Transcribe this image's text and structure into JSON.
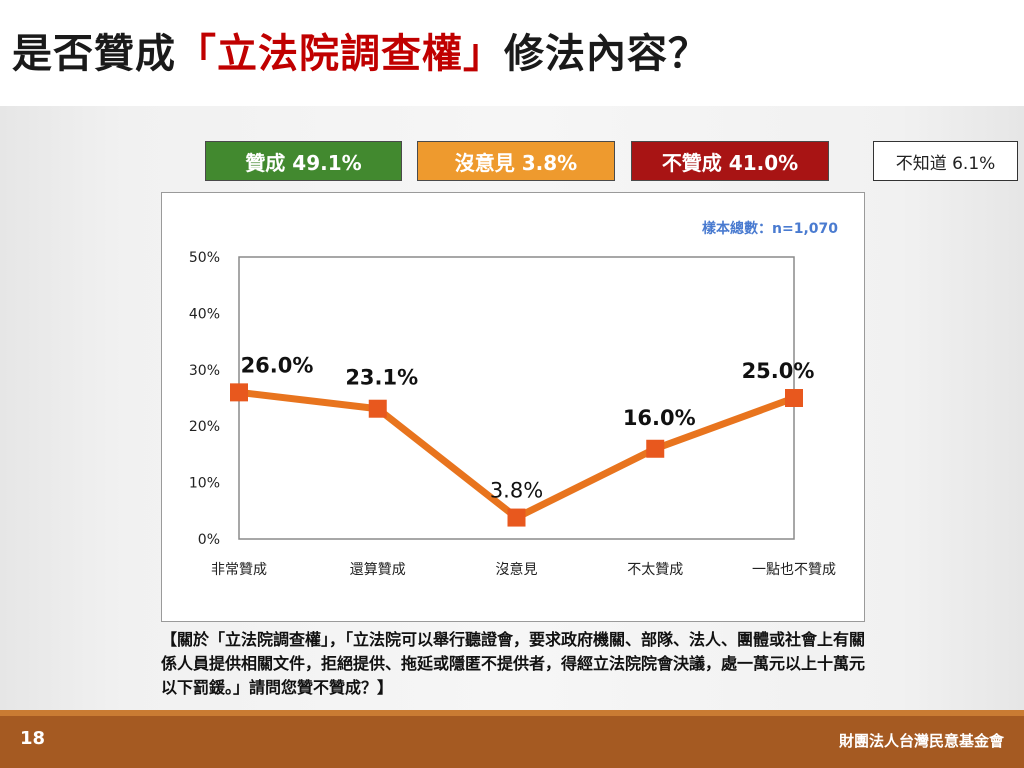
{
  "slide": {
    "title_prefix": "是否贊成",
    "title_highlight": "「立法院調查權」",
    "title_suffix": "修法內容？",
    "page_number": "18",
    "organization": "財團法人台灣民意基金會",
    "question": "【關於「立法院調查權」，「立法院可以舉行聽證會，要求政府機關、部隊、法人、團體或社會上有關係人員提供相關文件，拒絕提供、拖延或隱匿不提供者，得經立法院院會決議，處一萬元以上十萬元以下罰鍰。」請問您贊不贊成？】"
  },
  "summary": {
    "yes": "贊成 49.1%",
    "neutral": "沒意見 3.8%",
    "no": "不贊成 41.0%",
    "unknown": "不知道 6.1%"
  },
  "colors": {
    "yes": "#42892f",
    "neutral": "#ee9a2e",
    "no": "#a81414",
    "line": "#e8741e",
    "marker": "#e8581e",
    "sample_text": "#4a7bd0"
  },
  "chart_data": {
    "type": "line",
    "sample_note": "樣本總數：n=1,070",
    "categories": [
      "非常贊成",
      "還算贊成",
      "沒意見",
      "不太贊成",
      "一點也不贊成"
    ],
    "values": [
      26.0,
      23.1,
      3.8,
      16.0,
      25.0
    ],
    "data_labels": [
      "26.0%",
      "23.1%",
      "3.8%",
      "16.0%",
      "25.0%"
    ],
    "y_ticks": [
      0,
      10,
      20,
      30,
      40,
      50
    ],
    "y_tick_labels": [
      "0%",
      "10%",
      "20%",
      "30%",
      "40%",
      "50%"
    ],
    "ylim": [
      0,
      50
    ],
    "grid": false,
    "legend": "none"
  }
}
